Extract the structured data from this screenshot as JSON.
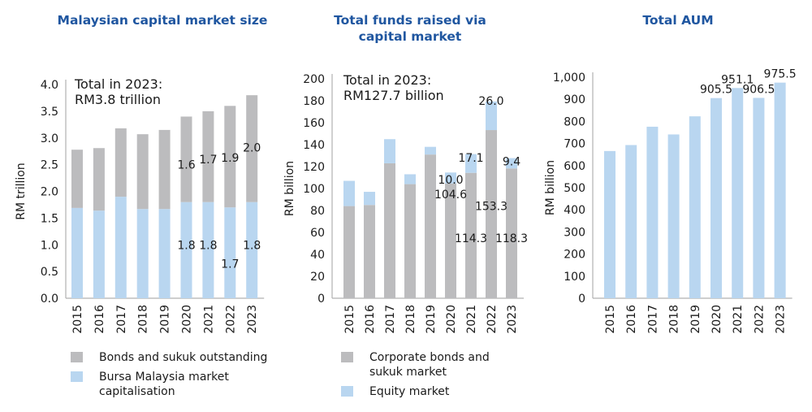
{
  "colors": {
    "title": "#1f56a0",
    "grey": "#bcbcbe",
    "blue": "#b9d6f0",
    "axis": "#b0b0b0",
    "text": "#1a1a1a"
  },
  "chart_data": [
    {
      "type": "bar",
      "stacked": true,
      "title": "Malaysian capital market size",
      "annotation": [
        "Total in 2023:",
        "RM3.8 trillion"
      ],
      "xlabel": "",
      "ylabel": "RM trillion",
      "ylim": [
        0,
        4.0
      ],
      "yticks": [
        "0.0",
        "0.5",
        "1.0",
        "1.5",
        "2.0",
        "2.5",
        "3.0",
        "3.5",
        "4.0"
      ],
      "categories": [
        "2015",
        "2016",
        "2017",
        "2018",
        "2019",
        "2020",
        "2021",
        "2022",
        "2023"
      ],
      "series": [
        {
          "name": "Bursa Malaysia market capitalisation",
          "color": "#b9d6f0",
          "values": [
            1.69,
            1.64,
            1.9,
            1.67,
            1.67,
            1.8,
            1.8,
            1.7,
            1.8
          ],
          "labels": [
            "",
            "",
            "",
            "",
            "",
            "1.8",
            "1.8",
            "1.7",
            "1.8"
          ]
        },
        {
          "name": "Bonds and sukuk outstanding",
          "color": "#bcbcbe",
          "values": [
            1.09,
            1.17,
            1.28,
            1.4,
            1.48,
            1.6,
            1.7,
            1.9,
            2.0
          ],
          "labels": [
            "",
            "",
            "",
            "",
            "",
            "1.6",
            "1.7",
            "1.9",
            "2.0"
          ]
        }
      ],
      "legend": [
        "Bonds and sukuk outstanding",
        "Bursa Malaysia market capitalisation"
      ],
      "legend_position": "bottom",
      "grid": false
    },
    {
      "type": "bar",
      "stacked": true,
      "title": "Total funds raised via capital market",
      "annotation": [
        "Total in 2023:",
        "RM127.7 billion"
      ],
      "xlabel": "",
      "ylabel": "RM billion",
      "ylim": [
        0,
        200
      ],
      "yticks": [
        "0",
        "20",
        "40",
        "60",
        "80",
        "100",
        "120",
        "140",
        "160",
        "180",
        "200"
      ],
      "categories": [
        "2015",
        "2016",
        "2017",
        "2018",
        "2019",
        "2020",
        "2021",
        "2022",
        "2023"
      ],
      "series": [
        {
          "name": "Corporate bonds and sukuk market",
          "color": "#bcbcbe",
          "values": [
            84,
            85,
            123,
            104,
            131,
            104.6,
            114.3,
            153.3,
            118.3
          ],
          "labels": [
            "",
            "",
            "",
            "",
            "",
            "104.6",
            "114.3",
            "153.3",
            "118.3"
          ]
        },
        {
          "name": "Equity market",
          "color": "#b9d6f0",
          "values": [
            23,
            12,
            22,
            9,
            7,
            10.0,
            17.1,
            26.0,
            9.4
          ],
          "labels": [
            "",
            "",
            "",
            "",
            "",
            "10.0",
            "17.1",
            "26.0",
            "9.4"
          ]
        }
      ],
      "legend": [
        "Corporate bonds and sukuk market",
        "Equity market"
      ],
      "legend_position": "bottom",
      "grid": false
    },
    {
      "type": "bar",
      "stacked": false,
      "title": "Total AUM",
      "annotation": [],
      "xlabel": "",
      "ylabel": "RM billion",
      "ylim": [
        0,
        1000
      ],
      "yticks": [
        "0",
        "100",
        "200",
        "300",
        "400",
        "500",
        "600",
        "700",
        "800",
        "900",
        "1,000"
      ],
      "categories": [
        "2015",
        "2016",
        "2017",
        "2018",
        "2019",
        "2020",
        "2021",
        "2022",
        "2023"
      ],
      "series": [
        {
          "name": "Total AUM",
          "color": "#b9d6f0",
          "values": [
            666,
            693,
            776,
            741,
            823,
            905.5,
            951.1,
            906.5,
            975.5
          ],
          "labels": [
            "",
            "",
            "",
            "",
            "",
            "905.5",
            "951.1",
            "906.5",
            "975.5"
          ]
        }
      ],
      "legend": [],
      "grid": false
    }
  ],
  "legends": {
    "chart1": [
      {
        "label": "Bonds and sukuk outstanding",
        "swatch": "grey"
      },
      {
        "label": "Bursa Malaysia market capitalisation",
        "swatch": "blue"
      }
    ],
    "chart2": [
      {
        "label": "Corporate bonds and sukuk market",
        "label_line1": "Corporate bonds and",
        "label_line2": "sukuk market",
        "swatch": "grey"
      },
      {
        "label": "Equity market",
        "swatch": "blue"
      }
    ]
  }
}
